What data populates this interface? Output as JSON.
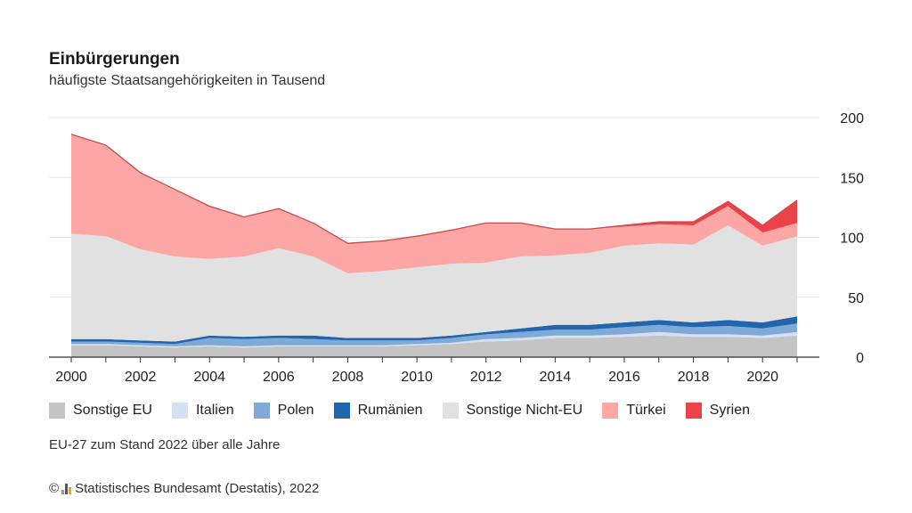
{
  "header": {
    "title": "Einbürgerungen",
    "subtitle": "häufigste Staatsangehörigkeiten in Tausend"
  },
  "note": "EU-27 zum Stand 2022 über alle Jahre",
  "source": {
    "copyright": "©",
    "text": "Statistisches Bundesamt (Destatis), 2022"
  },
  "chart_data": {
    "type": "area",
    "stacked": true,
    "title": "Einbürgerungen",
    "subtitle": "häufigste Staatsangehörigkeiten in Tausend",
    "x": [
      2000,
      2001,
      2002,
      2003,
      2004,
      2005,
      2006,
      2007,
      2008,
      2009,
      2010,
      2011,
      2012,
      2013,
      2014,
      2015,
      2016,
      2017,
      2018,
      2019,
      2020,
      2021
    ],
    "x_ticks": [
      "2000",
      "2002",
      "2004",
      "2006",
      "2008",
      "2010",
      "2012",
      "2014",
      "2016",
      "2018",
      "2020"
    ],
    "y_ticks": [
      "200",
      "150",
      "100",
      "50",
      "0"
    ],
    "ylim": [
      0,
      200
    ],
    "y_axis_side": "right",
    "grid": true,
    "legend_position": "bottom",
    "series": [
      {
        "name": "Sonstige EU",
        "color": "#c4c4c4",
        "values": [
          10,
          10,
          9,
          8,
          9,
          8,
          9,
          9,
          9,
          9,
          10,
          11,
          13,
          14,
          16,
          16,
          17,
          18,
          17,
          17,
          16,
          18
        ]
      },
      {
        "name": "Italien",
        "color": "#d4e1f5",
        "values": [
          1,
          1,
          1,
          1,
          1,
          1,
          1,
          1,
          1,
          1,
          1,
          1,
          2,
          2,
          2,
          2,
          2,
          3,
          2,
          2,
          2,
          3
        ]
      },
      {
        "name": "Polen",
        "color": "#7fa9d6",
        "values": [
          2,
          2,
          2,
          2,
          6,
          6,
          6,
          5,
          4,
          4,
          3,
          4,
          4,
          5,
          5,
          5,
          6,
          6,
          6,
          7,
          6,
          7
        ]
      },
      {
        "name": "Rumänien",
        "color": "#2166ac",
        "values": [
          2,
          2,
          2,
          2,
          2,
          2,
          2,
          3,
          2,
          2,
          2,
          2,
          2,
          3,
          4,
          4,
          4,
          4,
          4,
          5,
          5,
          6
        ]
      },
      {
        "name": "Sonstige Nicht-EU",
        "color": "#e1e1e1",
        "values": [
          88,
          86,
          76,
          71,
          64,
          67,
          73,
          66,
          54,
          56,
          59,
          60,
          58,
          60,
          58,
          60,
          64,
          64,
          65,
          79,
          64,
          67
        ]
      },
      {
        "name": "Türkei",
        "color": "#fca6a6",
        "values": [
          83,
          76,
          64,
          56,
          44,
          33,
          33,
          28,
          25,
          25,
          26,
          28,
          33,
          28,
          22,
          20,
          16,
          16,
          16,
          16,
          11,
          11
        ]
      },
      {
        "name": "Syrien",
        "color": "#ec4248",
        "values": [
          0,
          0,
          0,
          0,
          0,
          0,
          0,
          0,
          0,
          0,
          0,
          0,
          0,
          0,
          0,
          0,
          1,
          2,
          3,
          4,
          6,
          19
        ]
      }
    ]
  }
}
